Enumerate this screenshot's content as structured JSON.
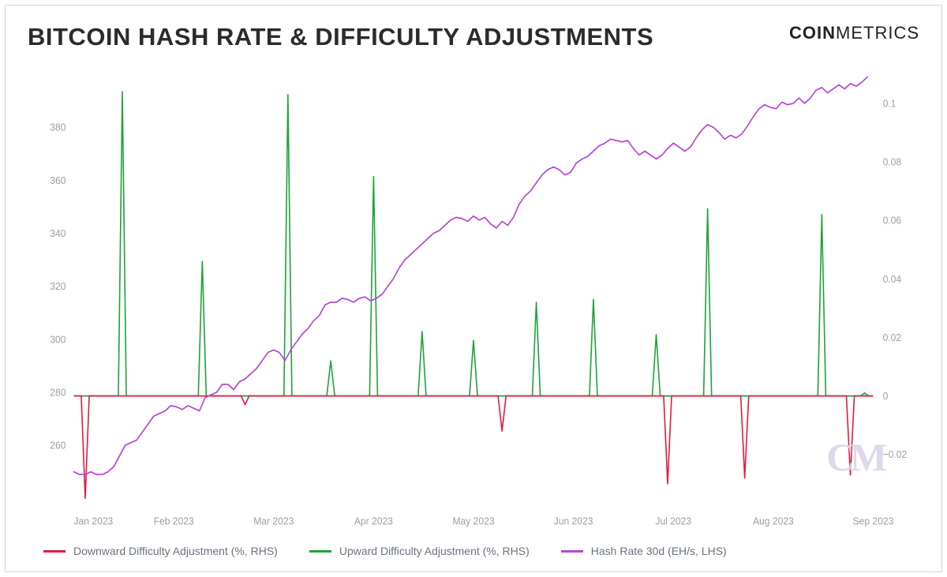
{
  "header": {
    "title": "BITCOIN HASH RATE & DIFFICULTY ADJUSTMENTS",
    "brand_bold": "COIN",
    "brand_light": "METRICS"
  },
  "chart": {
    "type": "line-with-spikes-dual-axis",
    "background_color": "#ffffff",
    "frame_border_color": "#d9d4e8",
    "axis_text_color": "#9aa0a6",
    "axis_fontsize": 12,
    "left_axis": {
      "min": 240,
      "max": 400,
      "ticks": [
        260,
        280,
        300,
        320,
        340,
        360,
        380
      ],
      "tick_labels": [
        "260",
        "280",
        "300",
        "320",
        "340",
        "360",
        "380"
      ]
    },
    "right_axis": {
      "min": -0.035,
      "max": 0.11,
      "zero": 0,
      "axis_color": "#6b8e23",
      "axis_width": 1,
      "ticks": [
        -0.02,
        0,
        0.02,
        0.04,
        0.06,
        0.08,
        0.1
      ],
      "tick_labels": [
        "−0.02",
        "0",
        "0.02",
        "0.04",
        "0.06",
        "0.08",
        "0.1"
      ]
    },
    "x_axis": {
      "categories": [
        "Jan 2023",
        "Feb 2023",
        "Mar 2023",
        "Apr 2023",
        "May 2023",
        "Jun 2023",
        "Jul 2023",
        "Aug 2023",
        "Sep 2023"
      ]
    },
    "series": {
      "hash_rate": {
        "name": "Hash Rate 30d (EH/s, LHS)",
        "color": "#b547d6",
        "line_width": 1.6,
        "points": [
          [
            0.0,
            250
          ],
          [
            0.02,
            249
          ],
          [
            0.04,
            249
          ],
          [
            0.06,
            250
          ],
          [
            0.08,
            249
          ],
          [
            0.1,
            249
          ],
          [
            0.12,
            250
          ],
          [
            0.14,
            252
          ],
          [
            0.16,
            256
          ],
          [
            0.18,
            260
          ],
          [
            0.2,
            261
          ],
          [
            0.22,
            262
          ],
          [
            0.24,
            265
          ],
          [
            0.26,
            268
          ],
          [
            0.28,
            271
          ],
          [
            0.3,
            272
          ],
          [
            0.32,
            273
          ],
          [
            0.34,
            275
          ],
          [
            0.36,
            274.5
          ],
          [
            0.38,
            273.5
          ],
          [
            0.4,
            275
          ],
          [
            0.42,
            274
          ],
          [
            0.44,
            273
          ],
          [
            0.46,
            278
          ],
          [
            0.48,
            279
          ],
          [
            0.5,
            280
          ],
          [
            0.52,
            283
          ],
          [
            0.54,
            283
          ],
          [
            0.56,
            281
          ],
          [
            0.58,
            284
          ],
          [
            0.6,
            285
          ],
          [
            0.62,
            287
          ],
          [
            0.64,
            289
          ],
          [
            0.66,
            292
          ],
          [
            0.68,
            295
          ],
          [
            0.7,
            296
          ],
          [
            0.72,
            295
          ],
          [
            0.74,
            292
          ],
          [
            0.76,
            296
          ],
          [
            0.78,
            299
          ],
          [
            0.8,
            302
          ],
          [
            0.82,
            304
          ],
          [
            0.84,
            307
          ],
          [
            0.86,
            309
          ],
          [
            0.88,
            313
          ],
          [
            0.9,
            314
          ],
          [
            0.92,
            314
          ],
          [
            0.94,
            315.5
          ],
          [
            0.96,
            315
          ],
          [
            0.98,
            314
          ],
          [
            1.0,
            315.5
          ],
          [
            1.02,
            316
          ],
          [
            1.04,
            314.5
          ],
          [
            1.06,
            315.5
          ],
          [
            1.08,
            317
          ],
          [
            1.1,
            320
          ],
          [
            1.12,
            323
          ],
          [
            1.14,
            327
          ],
          [
            1.16,
            330
          ],
          [
            1.18,
            332
          ],
          [
            1.2,
            334
          ],
          [
            1.22,
            336
          ],
          [
            1.24,
            338
          ],
          [
            1.26,
            340
          ],
          [
            1.28,
            341
          ],
          [
            1.3,
            343
          ],
          [
            1.32,
            345
          ],
          [
            1.34,
            346
          ],
          [
            1.36,
            345.5
          ],
          [
            1.38,
            344.5
          ],
          [
            1.4,
            346.5
          ],
          [
            1.42,
            345
          ],
          [
            1.44,
            346
          ],
          [
            1.46,
            343.5
          ],
          [
            1.48,
            342
          ],
          [
            1.5,
            344.5
          ],
          [
            1.52,
            343
          ],
          [
            1.54,
            346
          ],
          [
            1.56,
            351
          ],
          [
            1.58,
            354
          ],
          [
            1.6,
            356
          ],
          [
            1.62,
            359
          ],
          [
            1.64,
            362
          ],
          [
            1.66,
            364
          ],
          [
            1.68,
            365
          ],
          [
            1.7,
            364
          ],
          [
            1.72,
            362
          ],
          [
            1.74,
            363
          ],
          [
            1.76,
            366.5
          ],
          [
            1.78,
            368
          ],
          [
            1.8,
            369
          ],
          [
            1.82,
            371
          ],
          [
            1.84,
            373
          ],
          [
            1.86,
            374
          ],
          [
            1.88,
            375.5
          ],
          [
            1.9,
            375
          ],
          [
            1.92,
            374.5
          ],
          [
            1.94,
            375
          ],
          [
            1.96,
            372
          ],
          [
            1.98,
            369.5
          ],
          [
            2.0,
            371
          ],
          [
            2.02,
            369.5
          ],
          [
            2.04,
            368
          ],
          [
            2.06,
            369.5
          ],
          [
            2.08,
            372
          ],
          [
            2.1,
            374
          ],
          [
            2.12,
            372.5
          ],
          [
            2.14,
            371
          ],
          [
            2.16,
            372.5
          ],
          [
            2.18,
            376
          ],
          [
            2.2,
            379
          ],
          [
            2.22,
            381
          ],
          [
            2.24,
            380
          ],
          [
            2.26,
            378
          ],
          [
            2.28,
            375.5
          ],
          [
            2.3,
            377
          ],
          [
            2.32,
            376
          ],
          [
            2.34,
            377.5
          ],
          [
            2.36,
            380.5
          ],
          [
            2.38,
            384
          ],
          [
            2.4,
            387
          ],
          [
            2.42,
            388.5
          ],
          [
            2.44,
            387.5
          ],
          [
            2.46,
            387
          ],
          [
            2.48,
            389.5
          ],
          [
            2.5,
            388.5
          ],
          [
            2.52,
            389
          ],
          [
            2.54,
            391
          ],
          [
            2.56,
            389
          ],
          [
            2.58,
            391
          ],
          [
            2.6,
            394
          ],
          [
            2.62,
            395
          ],
          [
            2.64,
            393
          ],
          [
            2.66,
            394.5
          ],
          [
            2.68,
            396
          ],
          [
            2.7,
            394.5
          ],
          [
            2.72,
            396.5
          ],
          [
            2.74,
            395.5
          ],
          [
            2.76,
            397
          ],
          [
            2.78,
            399
          ]
        ]
      },
      "upward": {
        "name": "Upward Difficulty Adjustment (%, RHS)",
        "color": "#1fa33a",
        "line_width": 1.6,
        "spikes": [
          {
            "x": 0.17,
            "v": 0.104
          },
          {
            "x": 0.45,
            "v": 0.046
          },
          {
            "x": 0.75,
            "v": 0.103
          },
          {
            "x": 0.9,
            "v": 0.012
          },
          {
            "x": 1.05,
            "v": 0.075
          },
          {
            "x": 1.22,
            "v": 0.022
          },
          {
            "x": 1.4,
            "v": 0.019
          },
          {
            "x": 1.62,
            "v": 0.032
          },
          {
            "x": 1.82,
            "v": 0.033
          },
          {
            "x": 2.04,
            "v": 0.021
          },
          {
            "x": 2.22,
            "v": 0.064
          },
          {
            "x": 2.5,
            "v": 0.0
          },
          {
            "x": 2.62,
            "v": 0.062
          },
          {
            "x": 2.77,
            "v": 0.001
          }
        ]
      },
      "downward": {
        "name": "Downward Difficulty Adjustment (%, RHS)",
        "color": "#e11d3f",
        "line_width": 1.6,
        "spikes": [
          {
            "x": 0.04,
            "v": -0.035
          },
          {
            "x": 0.6,
            "v": -0.003
          },
          {
            "x": 1.5,
            "v": -0.012
          },
          {
            "x": 2.08,
            "v": -0.03
          },
          {
            "x": 2.35,
            "v": -0.028
          },
          {
            "x": 2.72,
            "v": -0.027
          }
        ]
      }
    },
    "watermark": {
      "text": "CM",
      "color": "#d9d4e8",
      "fontsize": 44
    }
  },
  "legend": {
    "items": [
      {
        "key": "downward",
        "label": "Downward Difficulty Adjustment (%, RHS)",
        "color": "#e11d3f"
      },
      {
        "key": "upward",
        "label": "Upward Difficulty Adjustment (%, RHS)",
        "color": "#1fa33a"
      },
      {
        "key": "hashrate",
        "label": "Hash Rate 30d (EH/s, LHS)",
        "color": "#b547d6"
      }
    ]
  }
}
